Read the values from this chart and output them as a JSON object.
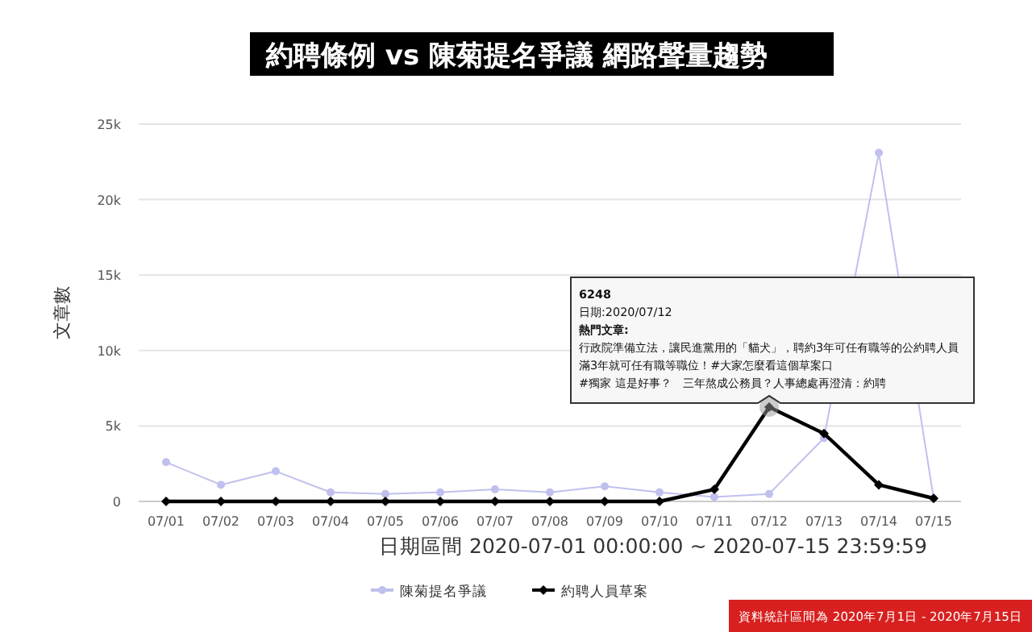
{
  "chart_data": {
    "type": "line",
    "title": "約聘條例 vs 陳菊提名爭議 網路聲量趨勢",
    "xlabel": "日期區間 2020-07-01 00:00:00 ~ 2020-07-15 23:59:59",
    "ylabel": "文章數",
    "categories": [
      "07/01",
      "07/02",
      "07/03",
      "07/04",
      "07/05",
      "07/06",
      "07/07",
      "07/08",
      "07/09",
      "07/10",
      "07/11",
      "07/12",
      "07/13",
      "07/14",
      "07/15"
    ],
    "series": [
      {
        "name": "陳菊提名爭議",
        "color": "#c0c0ee",
        "marker": "circle",
        "values": [
          2600,
          1100,
          2000,
          600,
          500,
          600,
          800,
          600,
          1000,
          600,
          300,
          500,
          4200,
          23100,
          200
        ]
      },
      {
        "name": "約聘人員草案",
        "color": "#000000",
        "marker": "diamond",
        "values": [
          0,
          0,
          0,
          0,
          0,
          0,
          0,
          0,
          0,
          0,
          800,
          6248,
          4500,
          1100,
          200
        ]
      }
    ],
    "ylim": [
      0,
      25000
    ],
    "yticks": [
      {
        "value": 0,
        "label": "0"
      },
      {
        "value": 5000,
        "label": "5k"
      },
      {
        "value": 10000,
        "label": "10k"
      },
      {
        "value": 15000,
        "label": "15k"
      },
      {
        "value": 20000,
        "label": "20k"
      },
      {
        "value": 25000,
        "label": "25k"
      }
    ],
    "grid": "y",
    "legend": "bottom",
    "annotations": [
      "6248",
      "日期:2020/07/12",
      "熱門文章:",
      "行政院準備立法，讓民進黨用的「貓犬」，聘約3年可任有職等的公約聘人員滿3年就可任有職等職位！#大家怎麼看這個草案口",
      "#獨家 這是好事？　三年熬成公務員？人事總處再澄清：約聘",
      "資料統計區間為 2020年7月1日 - 2020年7月15日"
    ]
  }
}
